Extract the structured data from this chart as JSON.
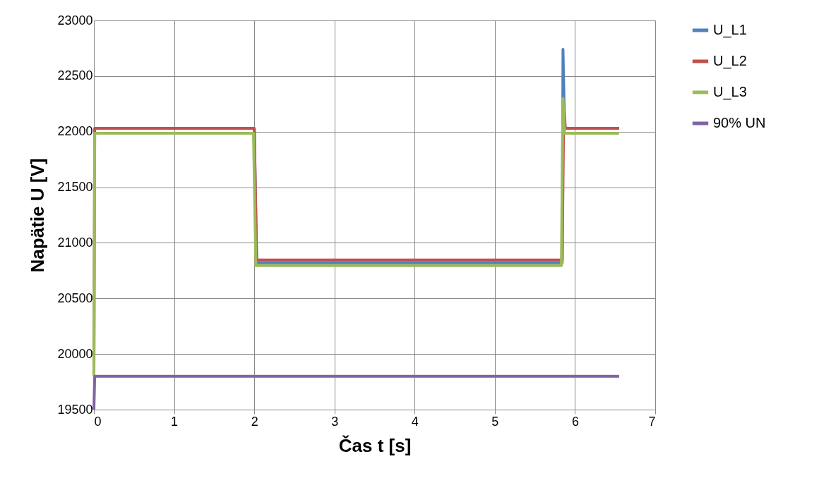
{
  "chart_data": {
    "type": "line",
    "xlabel": "Čas t [s]",
    "ylabel": "Napätie U [V]",
    "xlim": [
      0,
      7
    ],
    "xticks": [
      0,
      1,
      2,
      3,
      4,
      5,
      6,
      7
    ],
    "ylim": [
      19500,
      23000
    ],
    "yticks": [
      19500,
      20000,
      20500,
      21000,
      21500,
      22000,
      22500,
      23000
    ],
    "grid": true,
    "legend": "right",
    "marker": "none",
    "line_style": "solid",
    "series": [
      {
        "name": "U_L1",
        "color": "#4f81bd",
        "x": [
          2.0,
          2.03,
          5.84,
          5.85,
          5.87,
          6.55
        ],
        "values": [
          22030,
          20820,
          20820,
          22740,
          22030,
          22030
        ]
      },
      {
        "name": "U_L2",
        "color": "#c0504d",
        "x": [
          0,
          0.01,
          2.0,
          2.03,
          5.84,
          5.86,
          5.88,
          6.55
        ],
        "values": [
          19800,
          22030,
          22030,
          20845,
          20845,
          22230,
          22030,
          22030
        ]
      },
      {
        "name": "U_L3",
        "color": "#9bbb59",
        "x": [
          0,
          0.01,
          1.99,
          2.02,
          5.83,
          5.85,
          5.87,
          6.55
        ],
        "values": [
          19800,
          21985,
          21985,
          20795,
          20795,
          22300,
          21985,
          21985
        ]
      },
      {
        "name": "90% UN",
        "color": "#8064a2",
        "x": [
          0,
          0.01,
          6.55
        ],
        "values": [
          19500,
          19800,
          19800
        ]
      }
    ]
  }
}
